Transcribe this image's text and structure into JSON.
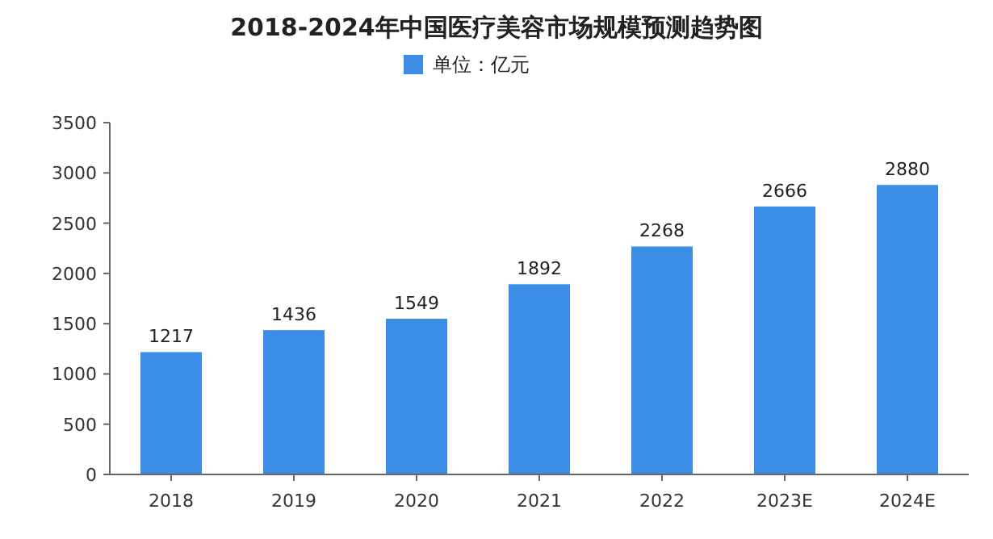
{
  "chart_data": {
    "type": "bar",
    "title": "2018-2024年中国医疗美容市场规模预测趋势图",
    "categories": [
      "2018",
      "2019",
      "2020",
      "2021",
      "2022",
      "2023E",
      "2024E"
    ],
    "series": [
      {
        "name": "单位：亿元",
        "color": "#3a8ee6",
        "values": [
          1217,
          1436,
          1549,
          1892,
          2268,
          2666,
          2880
        ]
      }
    ],
    "ylim": [
      0,
      3500
    ],
    "yticks": [
      0,
      500,
      1000,
      1500,
      2000,
      2500,
      3000,
      3500
    ],
    "data_labels": true,
    "legend": "top",
    "grid": false
  }
}
